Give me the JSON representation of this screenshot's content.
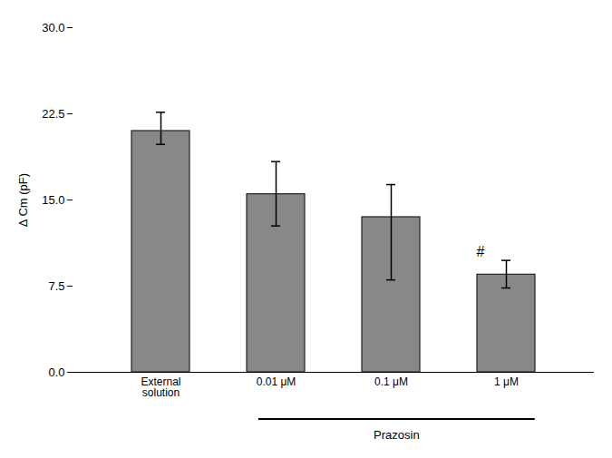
{
  "chart_data": {
    "type": "bar",
    "categories": [
      "External\nsolution",
      "0.01 μM",
      "0.1 μM",
      "1 μM"
    ],
    "values": [
      21.0,
      15.5,
      13.5,
      8.5
    ],
    "errors_upper": [
      1.6,
      2.8,
      2.8,
      1.2
    ],
    "errors_lower": [
      1.2,
      2.8,
      5.5,
      1.2
    ],
    "color": "#888888",
    "ylabel": "Δ Cm (pF)",
    "ylim": [
      0,
      30
    ],
    "yticks": [
      {
        "value": 0,
        "label": "0.0"
      },
      7.5,
      {
        "value": 15,
        "label": "15.0"
      },
      22.5,
      {
        "value": 30,
        "label": "30.0"
      }
    ],
    "grid": false,
    "annotations": [
      {
        "text": "#",
        "category": "1 μM"
      },
      {
        "text": "Prazosin",
        "categories": [
          "0.01 μM",
          "0.1 μM",
          "1 μM"
        ]
      }
    ]
  }
}
